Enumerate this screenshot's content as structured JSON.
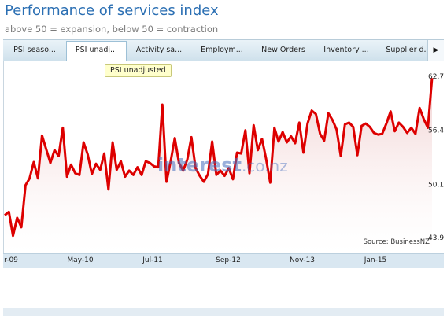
{
  "header": {
    "title": "Performance of services index",
    "subtitle": "above 50 = expansion, below 50 = contraction"
  },
  "tabs": [
    {
      "label": "PSI seaso...",
      "active": false
    },
    {
      "label": "PSI unadj...",
      "active": true
    },
    {
      "label": "Activity sa...",
      "active": false
    },
    {
      "label": "Employm...",
      "active": false
    },
    {
      "label": "New Orders",
      "active": false
    },
    {
      "label": "Inventory ...",
      "active": false
    },
    {
      "label": "Supplier d...",
      "active": false
    }
  ],
  "tab_next_icon": "triangle-right-icon",
  "tooltip": {
    "text": "PSI unadjusted"
  },
  "source": "Source: BusinessNZ",
  "watermark": {
    "main": "interest",
    "suffix": ".co.nz"
  },
  "colors": {
    "line": "#dd0000",
    "fill_top": "#f3dcdc",
    "accent": "#2b6fb3",
    "navigator_line": "#dd2222"
  },
  "chart_data": {
    "type": "area",
    "title": "Performance of services index",
    "subtitle": "above 50 = expansion, below 50 = contraction",
    "xlabel": "",
    "ylabel": "",
    "ylim": [
      43.9,
      62.7
    ],
    "yticks": [
      43.9,
      50.1,
      56.4,
      62.7
    ],
    "ytick_labels": [
      "43.9",
      "50.1",
      "56.4",
      "62.7"
    ],
    "xtick_labels": [
      "r-09",
      "May-10",
      "Jul-11",
      "Sep-12",
      "Nov-13",
      "Jan-15"
    ],
    "grid": false,
    "series": [
      {
        "name": "PSI unadjusted",
        "values": [
          46.5,
          46.9,
          44.1,
          46.2,
          45.1,
          50.0,
          50.8,
          52.7,
          50.8,
          55.8,
          54.2,
          52.6,
          54.1,
          53.4,
          56.7,
          51.0,
          52.4,
          51.4,
          51.2,
          55.0,
          53.6,
          51.3,
          52.5,
          51.8,
          53.7,
          49.5,
          55.0,
          51.8,
          52.8,
          51.0,
          51.7,
          51.2,
          52.1,
          51.2,
          52.8,
          52.6,
          52.2,
          52.1,
          59.4,
          50.4,
          52.8,
          55.5,
          52.6,
          51.7,
          53.0,
          55.6,
          52.0,
          51.1,
          50.4,
          51.3,
          55.1,
          51.2,
          51.7,
          51.1,
          52.0,
          50.7,
          53.8,
          53.7,
          56.4,
          51.4,
          57.0,
          54.1,
          55.4,
          53.1,
          50.3,
          56.7,
          55.1,
          56.2,
          55.0,
          55.7,
          54.9,
          57.3,
          53.8,
          57.2,
          58.7,
          58.3,
          56.0,
          55.2,
          58.4,
          57.6,
          56.5,
          53.4,
          57.1,
          57.3,
          56.8,
          53.5,
          56.9,
          57.2,
          56.8,
          56.1,
          55.9,
          56.0,
          57.2,
          58.6,
          56.3,
          57.3,
          56.8,
          56.1,
          56.7,
          56.0,
          59.0,
          57.7,
          56.7,
          62.5
        ]
      }
    ]
  }
}
